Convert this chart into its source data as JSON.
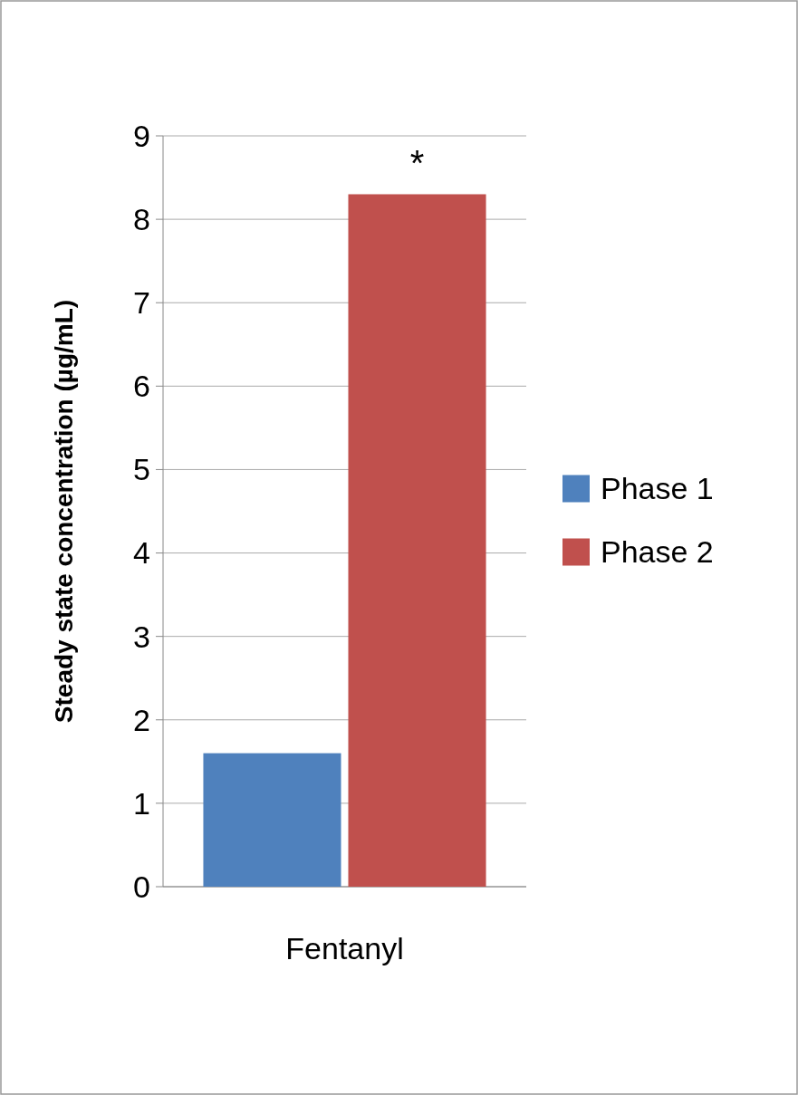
{
  "chart_data": {
    "type": "bar",
    "ylabel": "Steady state concentration (µg/mL)",
    "categories": [
      "Fentanyl"
    ],
    "series": [
      {
        "name": "Phase 1",
        "color": "#4f81bd",
        "values": [
          1.6
        ]
      },
      {
        "name": "Phase 2",
        "color": "#c0504d",
        "values": [
          8.3
        ]
      }
    ],
    "ylim": [
      0,
      9
    ],
    "yticks": [
      0,
      1,
      2,
      3,
      4,
      5,
      6,
      7,
      8,
      9
    ],
    "grid": "y",
    "legend": "right",
    "annotations": [
      "*"
    ]
  }
}
